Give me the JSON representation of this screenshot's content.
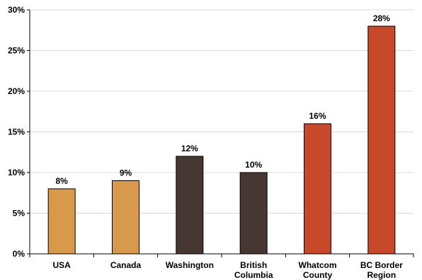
{
  "chart_data": {
    "type": "bar",
    "title": "",
    "xlabel": "",
    "ylabel": "",
    "ylim": [
      0,
      30
    ],
    "yticks": [
      "0%",
      "5%",
      "10%",
      "15%",
      "20%",
      "25%",
      "30%"
    ],
    "ytick_values": [
      0,
      5,
      10,
      15,
      20,
      25,
      30
    ],
    "grid": true,
    "legend": "none",
    "categories": [
      [
        "USA"
      ],
      [
        "Canada"
      ],
      [
        "Washington"
      ],
      [
        "British",
        "Columbia"
      ],
      [
        "Whatcom",
        "County"
      ],
      [
        "BC Border",
        "Region"
      ]
    ],
    "values": [
      8,
      9,
      12,
      10,
      16,
      28
    ],
    "data_labels": [
      "8%",
      "9%",
      "12%",
      "10%",
      "16%",
      "28%"
    ],
    "colors": [
      "#D9994A",
      "#D9994A",
      "#473632",
      "#473632",
      "#C8492A",
      "#C8492A"
    ],
    "gridline_color": "#D9D9D9",
    "axis_color": "#000000"
  }
}
